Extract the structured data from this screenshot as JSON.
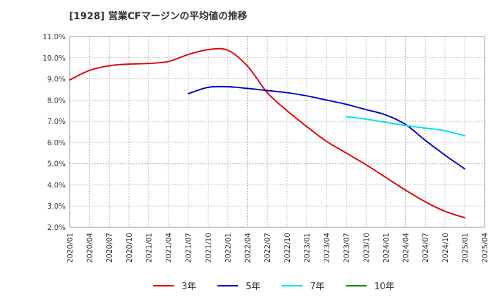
{
  "chart_data": {
    "type": "line",
    "title": "[1928]  営業CFマージンの平均値の推移",
    "xlabel": "",
    "ylabel": "",
    "x_ticks": [
      "2020/01",
      "2020/04",
      "2020/07",
      "2020/10",
      "2021/01",
      "2021/04",
      "2021/07",
      "2021/10",
      "2022/01",
      "2022/04",
      "2022/07",
      "2022/10",
      "2023/01",
      "2023/04",
      "2023/07",
      "2023/10",
      "2024/01",
      "2024/04",
      "2024/07",
      "2024/10",
      "2025/01",
      "2025/04"
    ],
    "y_ticks": [
      "2.0%",
      "3.0%",
      "4.0%",
      "5.0%",
      "6.0%",
      "7.0%",
      "8.0%",
      "9.0%",
      "10.0%",
      "11.0%"
    ],
    "ylim": [
      2.0,
      11.0
    ],
    "grid": true,
    "legend_position": "bottom",
    "series": [
      {
        "name": "3年",
        "color": "#e00000",
        "points": [
          [
            "2020/01",
            8.95
          ],
          [
            "2020/04",
            9.4
          ],
          [
            "2020/07",
            9.62
          ],
          [
            "2020/10",
            9.7
          ],
          [
            "2021/01",
            9.73
          ],
          [
            "2021/04",
            9.82
          ],
          [
            "2021/07",
            10.15
          ],
          [
            "2021/10",
            10.38
          ],
          [
            "2022/01",
            10.35
          ],
          [
            "2022/04",
            9.6
          ],
          [
            "2022/07",
            8.35
          ],
          [
            "2022/10",
            7.5
          ],
          [
            "2023/01",
            6.75
          ],
          [
            "2023/04",
            6.05
          ],
          [
            "2023/07",
            5.5
          ],
          [
            "2023/10",
            4.95
          ],
          [
            "2024/01",
            4.35
          ],
          [
            "2024/04",
            3.75
          ],
          [
            "2024/07",
            3.2
          ],
          [
            "2024/10",
            2.75
          ],
          [
            "2025/01",
            2.45
          ]
        ]
      },
      {
        "name": "5年",
        "color": "#0000c8",
        "points": [
          [
            "2021/07",
            8.3
          ],
          [
            "2021/10",
            8.6
          ],
          [
            "2022/01",
            8.63
          ],
          [
            "2022/04",
            8.55
          ],
          [
            "2022/07",
            8.45
          ],
          [
            "2022/10",
            8.35
          ],
          [
            "2023/01",
            8.2
          ],
          [
            "2023/04",
            8.0
          ],
          [
            "2023/07",
            7.8
          ],
          [
            "2023/10",
            7.55
          ],
          [
            "2024/01",
            7.3
          ],
          [
            "2024/04",
            6.85
          ],
          [
            "2024/07",
            6.1
          ],
          [
            "2024/10",
            5.4
          ],
          [
            "2025/01",
            4.75
          ]
        ]
      },
      {
        "name": "7年",
        "color": "#00e0f0",
        "points": [
          [
            "2023/07",
            7.22
          ],
          [
            "2023/10",
            7.1
          ],
          [
            "2024/01",
            6.95
          ],
          [
            "2024/04",
            6.8
          ],
          [
            "2024/07",
            6.68
          ],
          [
            "2024/10",
            6.55
          ],
          [
            "2025/01",
            6.32
          ]
        ]
      },
      {
        "name": "10年",
        "color": "#008000",
        "points": []
      }
    ]
  }
}
